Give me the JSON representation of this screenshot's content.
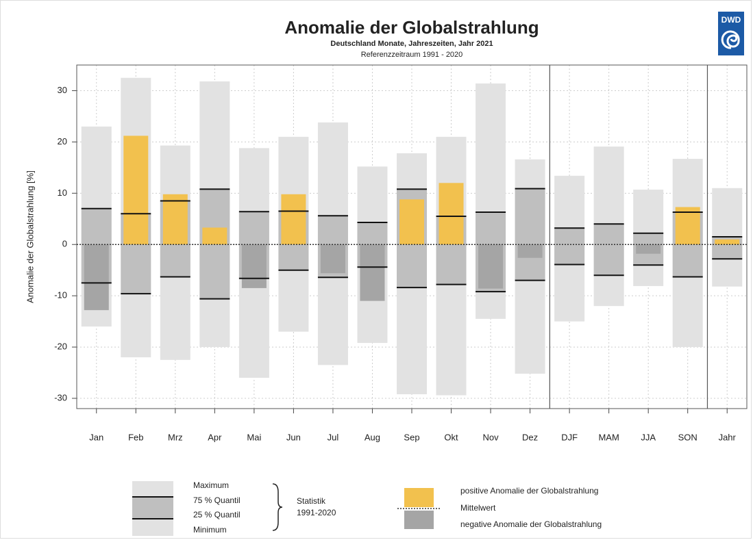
{
  "chart_data": {
    "type": "range",
    "title": "Anomalie der Globalstrahlung",
    "subtitle": "Deutschland Monate, Jahreszeiten, Jahr 2021",
    "reference": "Referenzzeitraum 1991 - 2020",
    "ylabel": "Anomalie der Globalstrahlung [%]",
    "logo": "DWD",
    "categories": [
      "Jan",
      "Feb",
      "Mrz",
      "Apr",
      "Mai",
      "Jun",
      "Jul",
      "Aug",
      "Sep",
      "Okt",
      "Nov",
      "Dez",
      "DJF",
      "MAM",
      "JJA",
      "SON",
      "Jahr"
    ],
    "maximum": [
      23,
      32.5,
      19.3,
      31.8,
      18.8,
      21,
      23.8,
      15.2,
      17.8,
      21,
      31.4,
      16.6,
      13.4,
      19.1,
      10.7,
      16.7,
      11
    ],
    "q75": [
      7,
      6,
      8.5,
      10.8,
      6.4,
      6.5,
      5.6,
      4.3,
      10.8,
      5.5,
      6.3,
      10.9,
      3.2,
      4,
      2.2,
      6.3,
      1.5
    ],
    "q25": [
      -7.5,
      -9.6,
      -6.3,
      -10.6,
      -6.6,
      -5,
      -6.4,
      -4.4,
      -8.4,
      -7.8,
      -9.2,
      -7,
      -3.9,
      -6,
      -4,
      -6.3,
      -2.8
    ],
    "minimum": [
      -16,
      -22,
      -22.5,
      -20,
      -26,
      -17,
      -23.5,
      -19.2,
      -29.2,
      -29.4,
      -14.5,
      -25.2,
      -15,
      -12,
      -8.1,
      -20,
      -8.2
    ],
    "values": [
      -12.8,
      21.2,
      9.8,
      3.3,
      -8.5,
      9.8,
      -5.6,
      -11,
      8.8,
      12,
      -8.6,
      -2.6,
      null,
      null,
      -1.8,
      7.3,
      1
    ],
    "colors": {
      "range": "#e2e2e2",
      "box": "#bfbfbf",
      "positive": "#f2c14e",
      "negative": "#a5a5a5"
    },
    "ylim": [
      -32,
      35
    ],
    "yticks": [
      -30,
      -20,
      -10,
      0,
      10,
      20,
      30
    ],
    "grid": true,
    "legend": {
      "statistics": [
        "Maximum",
        "75 % Quantil",
        "25 % Quantil",
        "Minimum"
      ],
      "statistics_label": [
        "Statistik",
        "1991-2020"
      ],
      "anomaly": [
        "positive Anomalie der Globalstrahlung",
        "Mittelwert",
        "negative Anomalie der Globalstrahlung"
      ]
    }
  }
}
